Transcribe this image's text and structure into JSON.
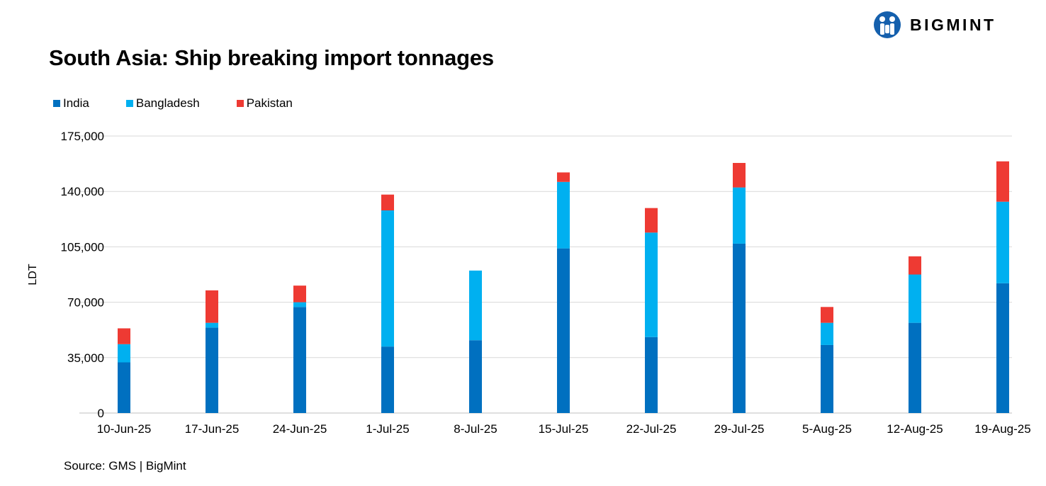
{
  "header": {
    "brand_name": "BIGMINT",
    "brand_color": "#1560ad"
  },
  "footer": {
    "source": "Source: GMS | BigMint"
  },
  "chart_data": {
    "type": "bar",
    "stacked": true,
    "title": "South Asia: Ship breaking import tonnages",
    "xlabel": "",
    "ylabel": "LDT",
    "ylim": [
      0,
      175000
    ],
    "yticks": [
      0,
      35000,
      70000,
      105000,
      140000,
      175000
    ],
    "ytick_labels": [
      "0",
      "35,000",
      "70,000",
      "105,000",
      "140,000",
      "175,000"
    ],
    "grid": true,
    "legend_position": "top-left",
    "categories": [
      "10-Jun-25",
      "17-Jun-25",
      "24-Jun-25",
      "1-Jul-25",
      "8-Jul-25",
      "15-Jul-25",
      "22-Jul-25",
      "29-Jul-25",
      "5-Aug-25",
      "12-Aug-25",
      "19-Aug-25"
    ],
    "series": [
      {
        "name": "India",
        "color": "#0070c0",
        "values": [
          32000,
          54000,
          67000,
          42000,
          46000,
          104000,
          48000,
          107000,
          43000,
          57000,
          82000
        ]
      },
      {
        "name": "Bangladesh",
        "color": "#00b0f0",
        "values": [
          11500,
          3000,
          3000,
          86000,
          44000,
          42000,
          66000,
          35500,
          14000,
          30500,
          51500
        ]
      },
      {
        "name": "Pakistan",
        "color": "#ee3a33",
        "values": [
          10000,
          20500,
          10500,
          10000,
          0,
          6000,
          15500,
          15500,
          10000,
          11500,
          25500
        ]
      }
    ]
  }
}
